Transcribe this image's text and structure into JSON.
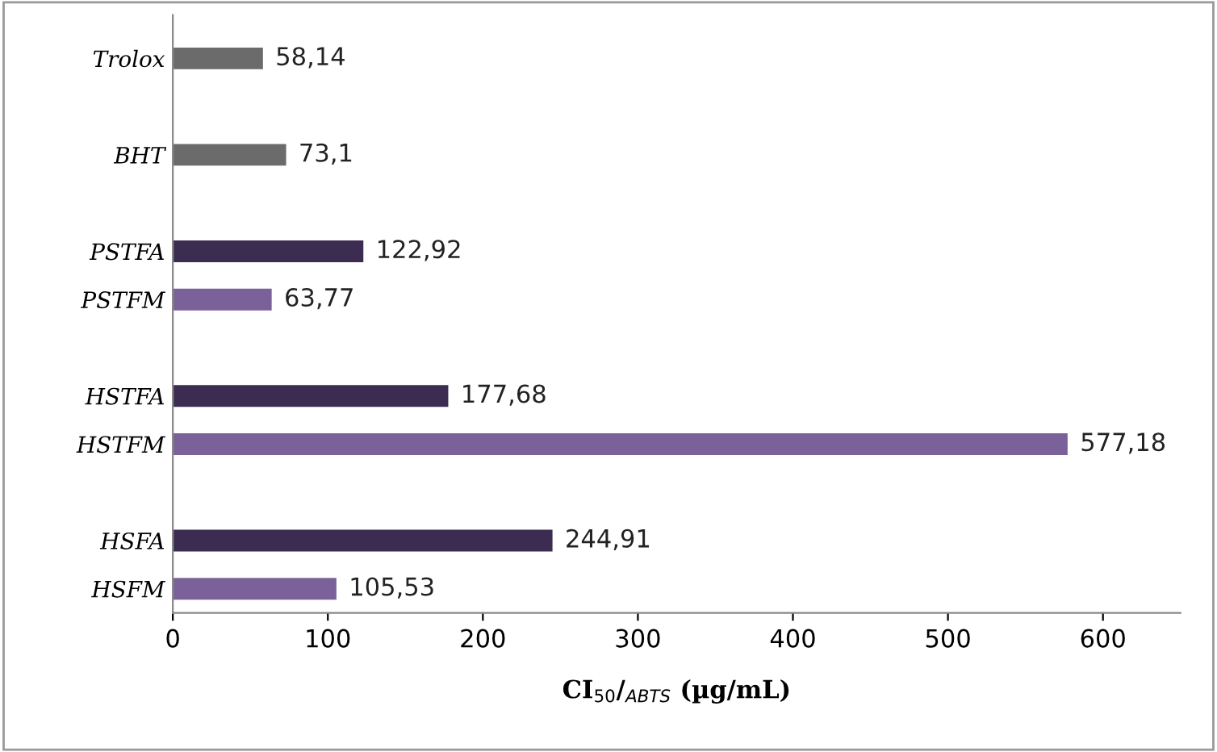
{
  "chart_data": {
    "type": "bar",
    "orientation": "horizontal",
    "categories": [
      "Trolox",
      null,
      "BHT",
      null,
      "PSTFA",
      "PSTFM",
      null,
      "HSTFA",
      "HSTFM",
      null,
      "HSFA",
      "HSFM"
    ],
    "values": [
      58.14,
      null,
      73.1,
      null,
      122.92,
      63.77,
      null,
      177.68,
      577.18,
      null,
      244.91,
      105.53
    ],
    "colors": [
      "#6b6b6b",
      "#6b6b6b",
      "#6b6b6b",
      "#6b6b6b",
      "#3d2c52",
      "#7b6199",
      "#6b6b6b",
      "#3d2c52",
      "#7b6199",
      "#6b6b6b",
      "#3d2c52",
      "#7b6199"
    ],
    "value_labels": [
      "58,14",
      null,
      "73,1",
      null,
      "122,92",
      "63,77",
      null,
      "177,68",
      "577,18",
      null,
      "244,91",
      "105,53"
    ],
    "xlabel": "CI$_{50}$/$_{ABTS}$ (µg/mL)",
    "xlim": [
      0,
      650
    ],
    "xticks": [
      0,
      100,
      200,
      300,
      400,
      500,
      600
    ],
    "grid": false,
    "legend": false
  }
}
